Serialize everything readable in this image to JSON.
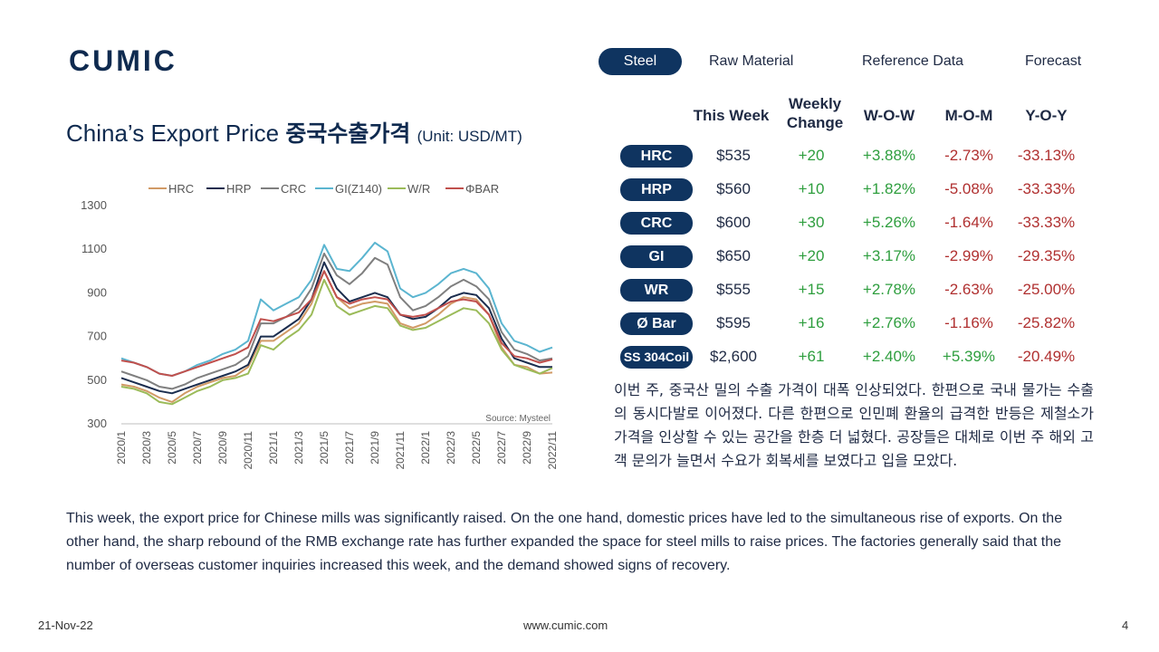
{
  "brand": {
    "logo_text": "CUMIC"
  },
  "nav": {
    "tabs": [
      {
        "label": "Steel",
        "active": true
      },
      {
        "label": "Raw Material",
        "active": false
      },
      {
        "label": "Reference Data",
        "active": false
      },
      {
        "label": "Forecast",
        "active": false
      }
    ]
  },
  "title": {
    "en": "China’s Export Price",
    "kr": "중국수출가격",
    "unit": "(Unit: USD/MT)"
  },
  "table": {
    "headers": {
      "this_week": "This Week",
      "weekly_change_1": "Weekly",
      "weekly_change_2": "Change",
      "wow": "W-O-W",
      "mom": "M-O-M",
      "yoy": "Y-O-Y"
    },
    "rows": [
      {
        "product": "HRC",
        "price": "$535",
        "change": "+20",
        "wow": "+3.88%",
        "mom": "-2.73%",
        "yoy": "-33.13%"
      },
      {
        "product": "HRP",
        "price": "$560",
        "change": "+10",
        "wow": "+1.82%",
        "mom": "-5.08%",
        "yoy": "-33.33%"
      },
      {
        "product": "CRC",
        "price": "$600",
        "change": "+30",
        "wow": "+5.26%",
        "mom": "-1.64%",
        "yoy": "-33.33%"
      },
      {
        "product": "GI",
        "price": "$650",
        "change": "+20",
        "wow": "+3.17%",
        "mom": "-2.99%",
        "yoy": "-29.35%"
      },
      {
        "product": "WR",
        "price": "$555",
        "change": "+15",
        "wow": "+2.78%",
        "mom": "-2.63%",
        "yoy": "-25.00%"
      },
      {
        "product": "Ø Bar",
        "price": "$595",
        "change": "+16",
        "wow": "+2.76%",
        "mom": "-1.16%",
        "yoy": "-25.82%"
      },
      {
        "product": "SS 304Coil",
        "price": "$2,600",
        "change": "+61",
        "wow": "+2.40%",
        "mom": "+5.39%",
        "yoy": "-20.49%"
      }
    ]
  },
  "commentary": {
    "kr": "이번 주, 중국산 밀의 수출 가격이 대폭 인상되었다. 한편으로 국내 물가는 수출의 동시다발로 이어졌다. 다른 한편으로 인민폐 환율의 급격한 반등은 제철소가 가격을 인상할 수 있는 공간을 한층 더 넓혔다. 공장들은 대체로 이번 주 해외 고객 문의가 늘면서 수요가 회복세를 보였다고 입을 모았다.",
    "en": "This week, the export price for Chinese mills was significantly raised. On the one hand, domestic prices have led to the simultaneous rise of exports. On the other hand, the sharp rebound of the RMB exchange rate has further expanded the space for steel mills to raise prices. The factories generally said that the number of overseas customer inquiries increased this week, and the demand showed signs of recovery."
  },
  "footer": {
    "date": "21-Nov-22",
    "website": "www.cumic.com",
    "page": "4"
  },
  "colors": {
    "navy": "#0f3460",
    "positive": "#2e9e3e",
    "negative": "#b03030"
  },
  "chart_data": {
    "type": "line",
    "title": "",
    "source": "Source: Mysteel",
    "ylim": [
      300,
      1300
    ],
    "yticks": [
      300,
      500,
      700,
      900,
      1100,
      1300
    ],
    "x_tick_labels": [
      "2020/1",
      "2020/3",
      "2020/5",
      "2020/7",
      "2020/9",
      "2020/11",
      "2021/1",
      "2021/3",
      "2021/5",
      "2021/7",
      "2021/9",
      "2021/11",
      "2022/1",
      "2022/3",
      "2022/5",
      "2022/7",
      "2022/9",
      "2022/11"
    ],
    "x": [
      "2020/1",
      "2020/2",
      "2020/3",
      "2020/4",
      "2020/5",
      "2020/6",
      "2020/7",
      "2020/8",
      "2020/9",
      "2020/10",
      "2020/11",
      "2020/12",
      "2021/1",
      "2021/2",
      "2021/3",
      "2021/4",
      "2021/5",
      "2021/6",
      "2021/7",
      "2021/8",
      "2021/9",
      "2021/10",
      "2021/11",
      "2021/12",
      "2022/1",
      "2022/2",
      "2022/3",
      "2022/4",
      "2022/5",
      "2022/6",
      "2022/7",
      "2022/8",
      "2022/9",
      "2022/10",
      "2022/11"
    ],
    "legend_position": "top",
    "series": [
      {
        "name": "HRC",
        "color": "#d19a66",
        "values": [
          480,
          470,
          450,
          420,
          400,
          440,
          470,
          490,
          510,
          520,
          560,
          680,
          680,
          720,
          760,
          850,
          1000,
          880,
          830,
          850,
          860,
          850,
          760,
          740,
          760,
          800,
          850,
          880,
          870,
          800,
          650,
          570,
          560,
          530,
          535
        ]
      },
      {
        "name": "HRP",
        "color": "#1b2d4e",
        "values": [
          510,
          490,
          470,
          450,
          440,
          460,
          480,
          500,
          520,
          540,
          570,
          700,
          700,
          740,
          780,
          870,
          1040,
          920,
          860,
          880,
          900,
          880,
          800,
          780,
          790,
          830,
          880,
          900,
          890,
          830,
          690,
          600,
          580,
          560,
          560
        ]
      },
      {
        "name": "CRC",
        "color": "#7f7f7f",
        "values": [
          540,
          520,
          500,
          470,
          460,
          480,
          510,
          530,
          550,
          570,
          610,
          760,
          760,
          790,
          830,
          920,
          1080,
          980,
          940,
          990,
          1060,
          1030,
          880,
          820,
          840,
          880,
          930,
          960,
          930,
          870,
          720,
          640,
          620,
          590,
          600
        ]
      },
      {
        "name": "GI(Z140)",
        "color": "#5bb5d0",
        "values": [
          600,
          580,
          560,
          530,
          520,
          540,
          570,
          590,
          620,
          640,
          680,
          870,
          820,
          850,
          880,
          960,
          1120,
          1010,
          1000,
          1060,
          1130,
          1090,
          920,
          880,
          900,
          940,
          990,
          1010,
          990,
          920,
          760,
          680,
          660,
          630,
          650
        ]
      },
      {
        "name": "W/R",
        "color": "#9bbb59",
        "values": [
          470,
          460,
          440,
          400,
          390,
          420,
          450,
          470,
          500,
          510,
          530,
          660,
          640,
          690,
          730,
          800,
          960,
          840,
          800,
          820,
          840,
          830,
          750,
          730,
          740,
          770,
          800,
          830,
          820,
          760,
          640,
          570,
          550,
          530,
          555
        ]
      },
      {
        "name": "ΦBAR",
        "color": "#c0504d",
        "values": [
          590,
          580,
          560,
          530,
          520,
          540,
          560,
          580,
          600,
          620,
          650,
          780,
          770,
          790,
          810,
          870,
          1000,
          880,
          850,
          870,
          880,
          870,
          800,
          790,
          800,
          830,
          860,
          870,
          860,
          800,
          670,
          610,
          600,
          580,
          595
        ]
      }
    ]
  }
}
